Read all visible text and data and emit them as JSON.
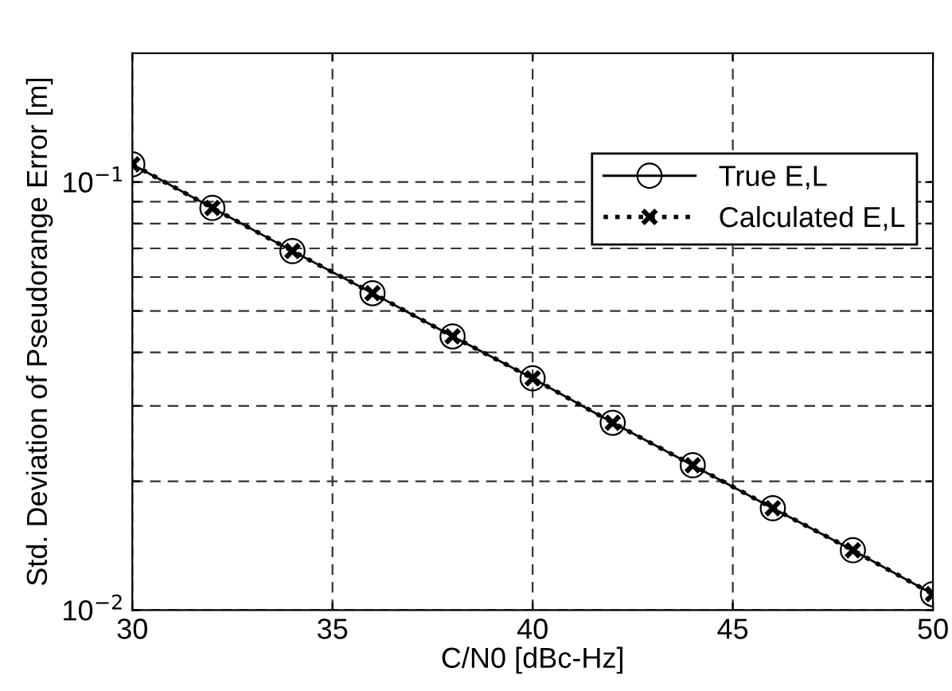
{
  "chart_data": {
    "type": "line",
    "xlabel": "C/N0 [dBc-Hz]",
    "ylabel": "Std. Deviation of Pseudorange Error [m]",
    "x": [
      30,
      32,
      34,
      36,
      38,
      40,
      42,
      44,
      46,
      48,
      50
    ],
    "series": [
      {
        "name": "True E,L",
        "color": "#000000",
        "marker": "circle",
        "line_style": "solid",
        "values": [
          0.11,
          0.087,
          0.069,
          0.055,
          0.0436,
          0.0348,
          0.0274,
          0.0218,
          0.0173,
          0.0138,
          0.0109
        ]
      },
      {
        "name": "Calculated E,L",
        "color": "#000000",
        "marker": "cross",
        "line_style": "dotted",
        "values": [
          0.11,
          0.087,
          0.069,
          0.055,
          0.0436,
          0.0348,
          0.0274,
          0.0218,
          0.0173,
          0.0138,
          0.0109
        ]
      }
    ],
    "log": "y",
    "xlim": [
      30,
      50
    ],
    "xticks": [
      30,
      35,
      40,
      45,
      50
    ],
    "ylim": [
      0.01,
      0.2
    ],
    "yticks": [
      {
        "value": 0.01,
        "label": "10$^{−2}$"
      },
      {
        "value": 0.02,
        "label": null
      },
      {
        "value": 0.03,
        "label": null
      },
      {
        "value": 0.04,
        "label": null
      },
      {
        "value": 0.05,
        "label": null
      },
      {
        "value": 0.06,
        "label": null
      },
      {
        "value": 0.07,
        "label": null
      },
      {
        "value": 0.08,
        "label": null
      },
      {
        "value": 0.09,
        "label": null
      },
      {
        "value": 0.1,
        "label": "10$^{−1}$"
      }
    ],
    "grid": true,
    "legend": "top right"
  }
}
